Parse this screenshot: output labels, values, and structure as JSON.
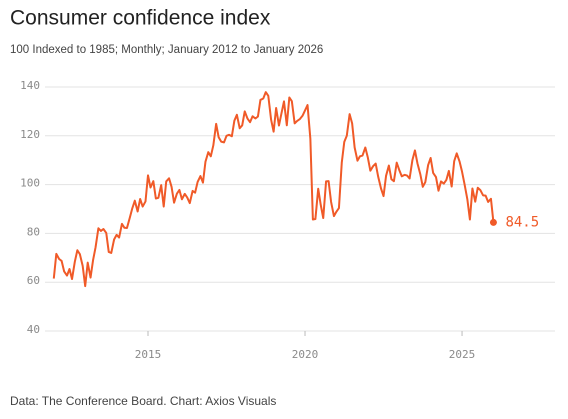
{
  "chart_data": {
    "type": "line",
    "title": "Consumer confidence index",
    "subtitle": "100 Indexed to 1985; Monthly; January 2012 to January 2026",
    "source": "Data: The Conference Board. Chart: Axios Visuals",
    "color": "#f05a28",
    "grid": true,
    "xlim": [
      2011.72,
      2027.96
    ],
    "xticks": [
      2015,
      2020,
      2025
    ],
    "ylim": [
      40,
      140
    ],
    "yticks": [
      40,
      60,
      80,
      100,
      120,
      140
    ],
    "x": [
      2012,
      2012.08,
      2012.17,
      2012.25,
      2012.33,
      2012.42,
      2012.5,
      2012.58,
      2012.67,
      2012.75,
      2012.83,
      2012.92,
      2013,
      2013.08,
      2013.17,
      2013.25,
      2013.33,
      2013.42,
      2013.5,
      2013.58,
      2013.67,
      2013.75,
      2013.83,
      2013.92,
      2014,
      2014.08,
      2014.17,
      2014.25,
      2014.33,
      2014.42,
      2014.5,
      2014.58,
      2014.67,
      2014.75,
      2014.83,
      2014.92,
      2015,
      2015.08,
      2015.17,
      2015.25,
      2015.33,
      2015.42,
      2015.5,
      2015.58,
      2015.67,
      2015.75,
      2015.83,
      2015.92,
      2016,
      2016.08,
      2016.17,
      2016.25,
      2016.33,
      2016.42,
      2016.5,
      2016.58,
      2016.67,
      2016.75,
      2016.83,
      2016.92,
      2017,
      2017.08,
      2017.17,
      2017.25,
      2017.33,
      2017.42,
      2017.5,
      2017.58,
      2017.67,
      2017.75,
      2017.83,
      2017.92,
      2018,
      2018.08,
      2018.17,
      2018.25,
      2018.33,
      2018.42,
      2018.5,
      2018.58,
      2018.67,
      2018.75,
      2018.83,
      2018.92,
      2019,
      2019.08,
      2019.17,
      2019.25,
      2019.33,
      2019.42,
      2019.5,
      2019.58,
      2019.67,
      2019.75,
      2019.83,
      2019.92,
      2020,
      2020.08,
      2020.17,
      2020.25,
      2020.33,
      2020.42,
      2020.5,
      2020.58,
      2020.67,
      2020.75,
      2020.83,
      2020.92,
      2021,
      2021.08,
      2021.17,
      2021.25,
      2021.33,
      2021.42,
      2021.5,
      2021.58,
      2021.67,
      2021.75,
      2021.83,
      2021.92,
      2022,
      2022.08,
      2022.17,
      2022.25,
      2022.33,
      2022.42,
      2022.5,
      2022.58,
      2022.67,
      2022.75,
      2022.83,
      2022.92,
      2023,
      2023.08,
      2023.17,
      2023.25,
      2023.33,
      2023.42,
      2023.5,
      2023.58,
      2023.67,
      2023.75,
      2023.83,
      2023.92,
      2024,
      2024.08,
      2024.17,
      2024.25,
      2024.33,
      2024.42,
      2024.5,
      2024.58,
      2024.67,
      2024.75,
      2024.83,
      2024.92,
      2025,
      2025.08,
      2025.17,
      2025.25,
      2025.33,
      2025.42,
      2025.5,
      2025.58,
      2025.67,
      2025.75,
      2025.83,
      2025.92,
      2026
    ],
    "values": [
      61.5,
      71.6,
      69.5,
      68.7,
      64.4,
      62.7,
      65.4,
      61.3,
      68.4,
      73.1,
      71.5,
      66.7,
      58.4,
      68.0,
      61.9,
      69.0,
      74.3,
      82.1,
      81.0,
      81.8,
      80.2,
      72.4,
      72.0,
      77.5,
      79.4,
      78.3,
      83.9,
      82.3,
      82.2,
      86.4,
      90.3,
      93.4,
      89.0,
      94.1,
      91.0,
      93.1,
      103.8,
      98.8,
      101.4,
      94.3,
      94.6,
      99.8,
      91.0,
      101.3,
      102.6,
      99.1,
      92.6,
      96.3,
      97.8,
      94.0,
      96.2,
      94.7,
      92.4,
      97.4,
      96.7,
      101.1,
      103.5,
      100.8,
      109.4,
      113.3,
      111.6,
      116.1,
      124.9,
      119.4,
      117.6,
      117.3,
      120.0,
      120.4,
      119.8,
      126.2,
      128.6,
      123.1,
      124.3,
      130.0,
      127.0,
      125.6,
      128.0,
      127.1,
      127.9,
      134.7,
      135.3,
      137.9,
      136.4,
      126.6,
      121.7,
      131.4,
      124.2,
      129.2,
      134.1,
      124.3,
      135.7,
      134.2,
      125.1,
      126.1,
      126.8,
      128.2,
      130.4,
      132.6,
      118.8,
      85.7,
      85.9,
      98.3,
      91.7,
      86.3,
      101.3,
      101.4,
      92.9,
      87.1,
      88.9,
      90.4,
      109.0,
      117.5,
      120.0,
      128.9,
      125.1,
      115.2,
      109.8,
      111.6,
      111.9,
      115.2,
      111.1,
      105.7,
      107.6,
      108.6,
      103.2,
      98.4,
      95.3,
      103.6,
      107.8,
      102.2,
      101.4,
      109.0,
      106.0,
      103.4,
      104.0,
      103.7,
      102.5,
      110.1,
      114.0,
      108.7,
      104.3,
      99.1,
      101.0,
      108.0,
      110.9,
      104.8,
      103.1,
      97.5,
      101.3,
      100.4,
      101.9,
      105.6,
      99.2,
      109.6,
      112.8,
      109.5,
      105.3,
      100.1,
      93.9,
      85.7,
      98.4,
      93.0,
      98.7,
      97.8,
      95.6,
      95.5,
      92.9,
      94.2,
      84.5
    ]
  }
}
